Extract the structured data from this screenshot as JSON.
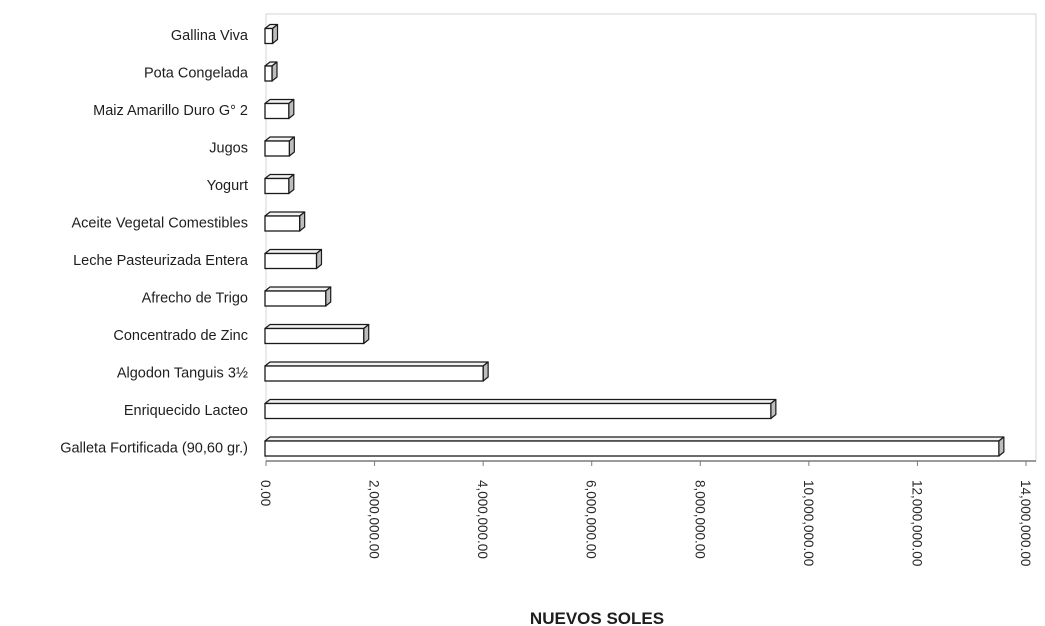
{
  "chart_data": {
    "type": "bar",
    "orientation": "horizontal",
    "categories": [
      "Gallina Viva",
      "Pota Congelada",
      "Maiz Amarillo Duro G° 2",
      "Jugos",
      "Yogurt",
      "Aceite Vegetal Comestibles",
      "Leche Pasteurizada Entera",
      "Afrecho de Trigo",
      "Concentrado de Zinc",
      "Algodon Tanguis 3½",
      "Enriquecido Lacteo",
      "Galleta Fortificada  (90,60 gr.)"
    ],
    "values": [
      120000,
      90000,
      420000,
      430000,
      420000,
      620000,
      930000,
      1100000,
      1800000,
      4000000,
      9300000,
      13500000
    ],
    "xlabel": "NUEVOS SOLES",
    "ylabel": "",
    "xlim": [
      0,
      14000000
    ],
    "ticks": [
      "0.00",
      "2,000,000.00",
      "4,000,000.00",
      "6,000,000.00",
      "8,000,000.00",
      "10,000,000.00",
      "12,000,000.00",
      "14,000,000.00"
    ],
    "grid": false,
    "legend": "none",
    "bar_style": "3d-outline",
    "colors": {
      "outline": "#1a1a1a",
      "fill": "#ffffff",
      "frame": "#d4d4d4"
    }
  }
}
